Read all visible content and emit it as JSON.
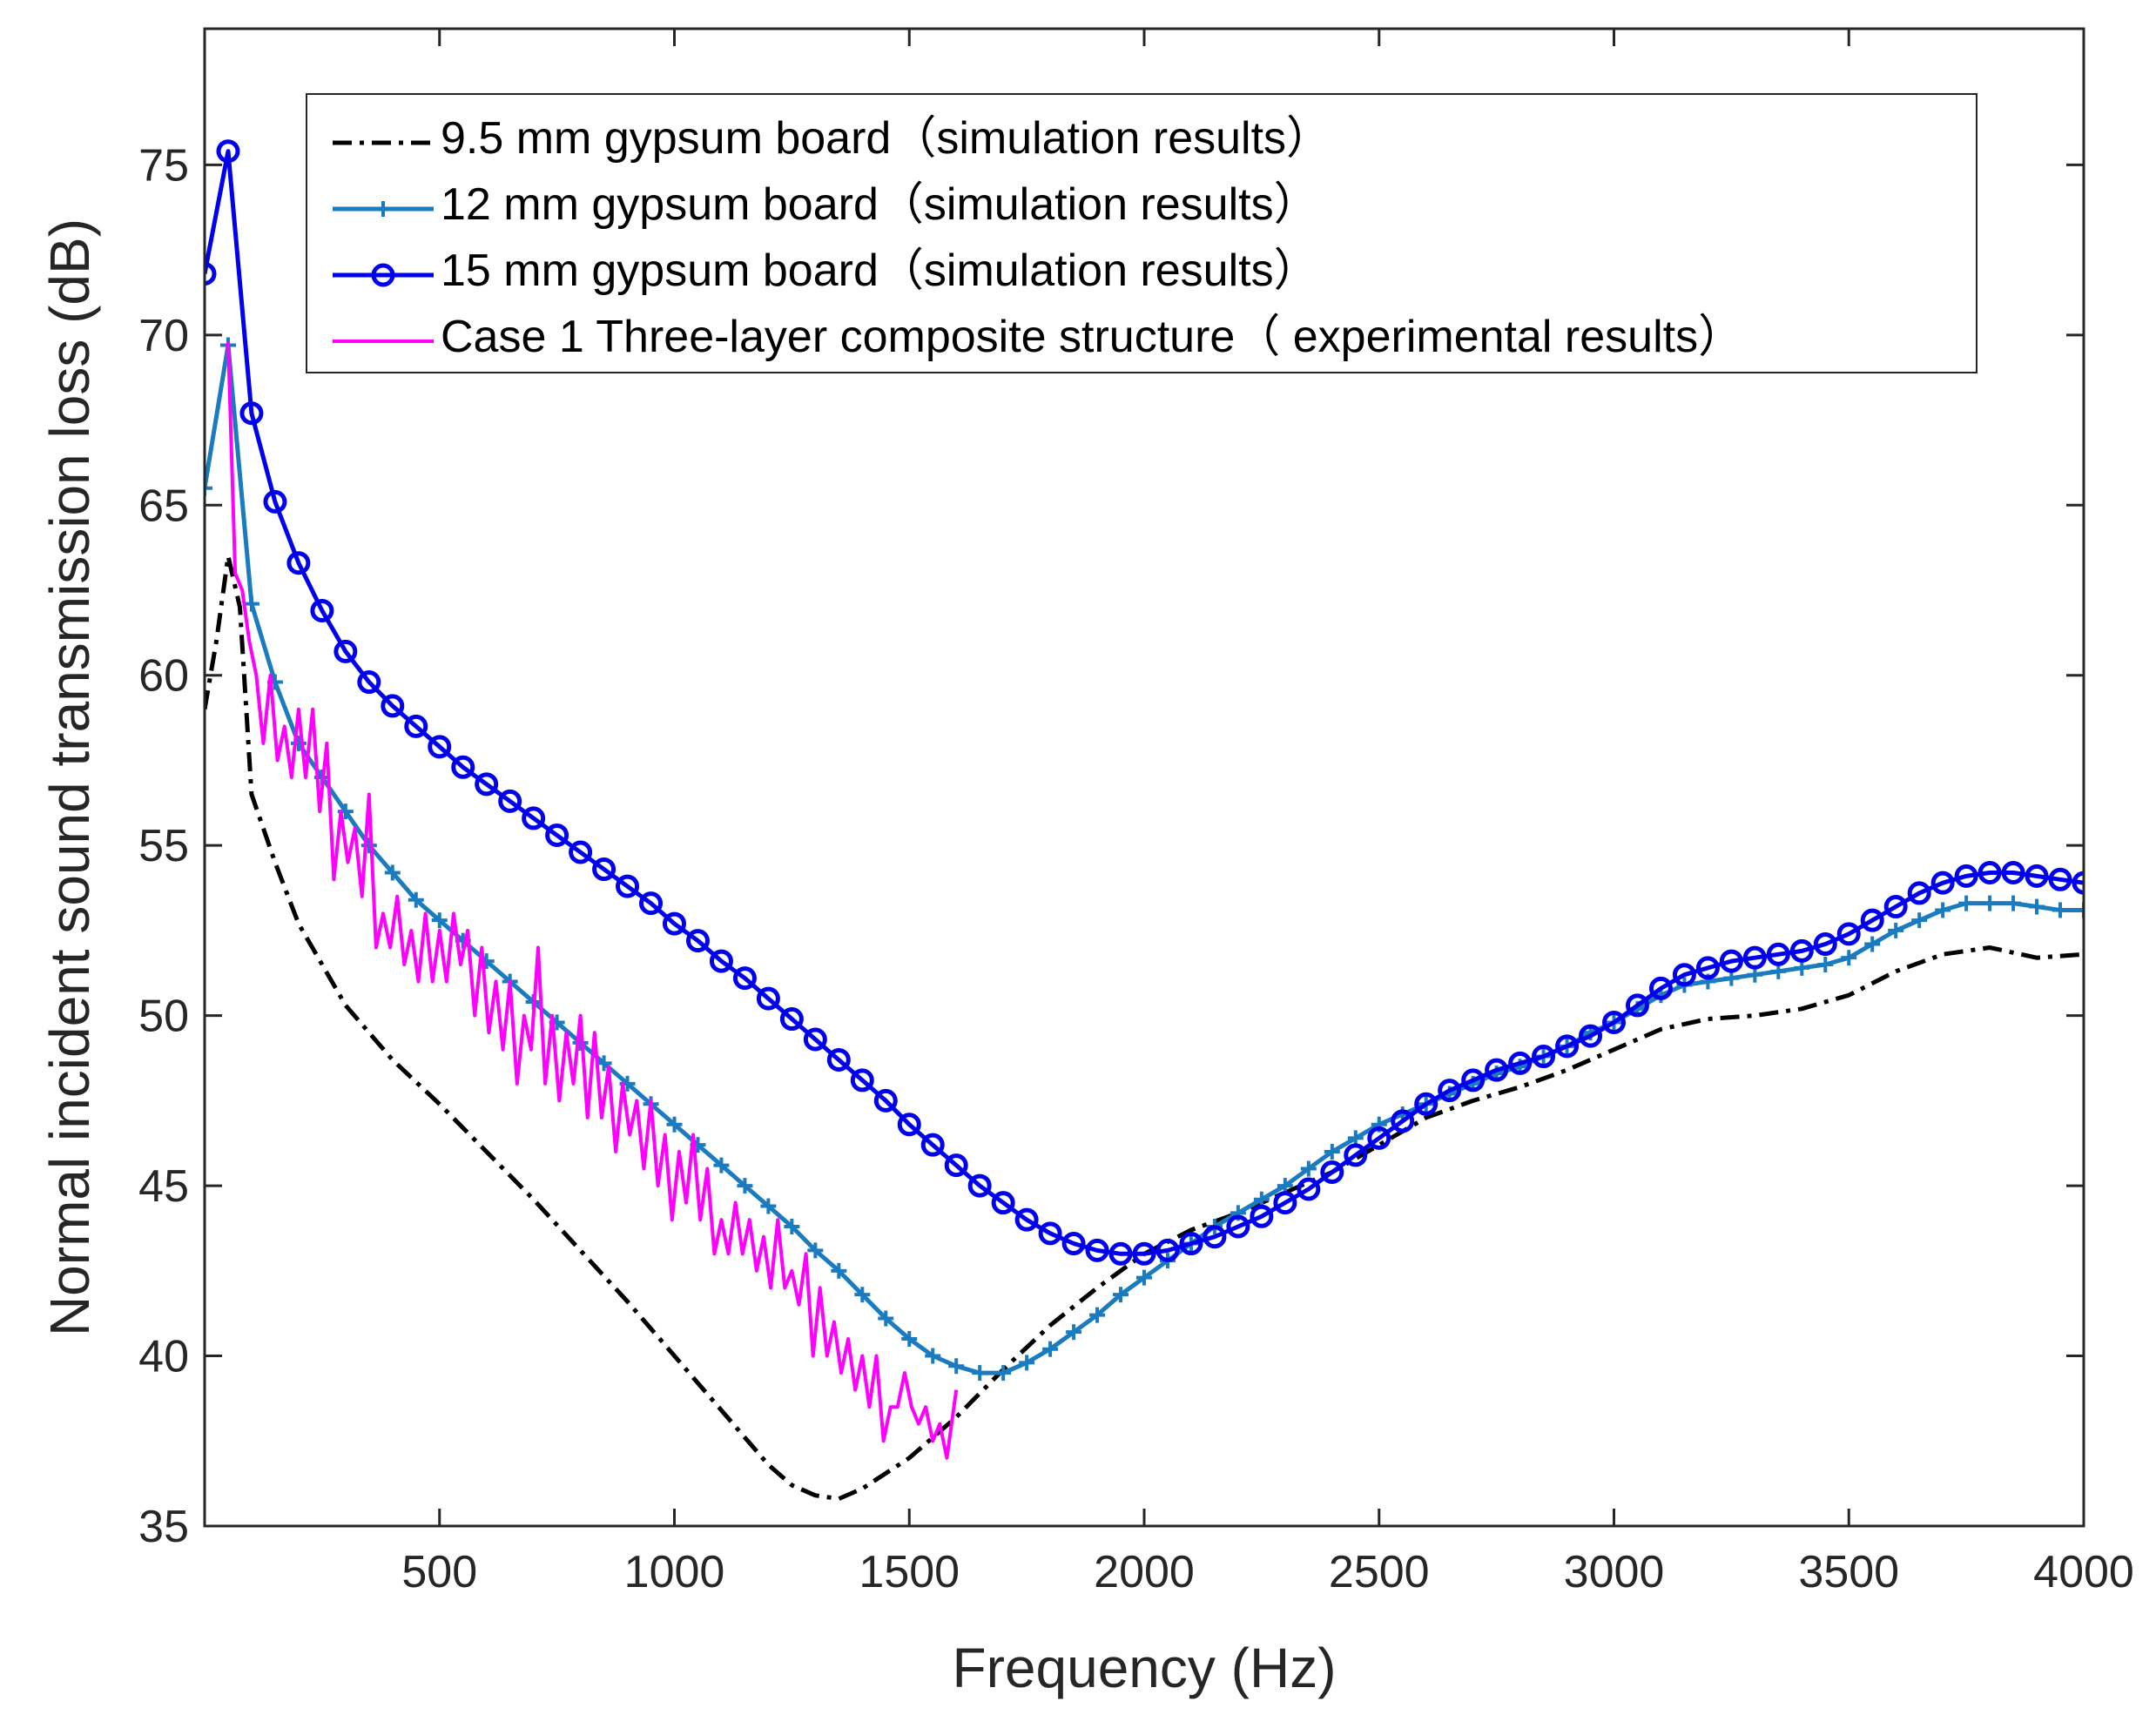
{
  "chart_data": {
    "type": "line",
    "title": "",
    "xlabel": "Frequency (Hz)",
    "ylabel": "Normal incident sound transmission loss (dB)",
    "xlim": [
      0,
      4000
    ],
    "ylim": [
      35,
      79
    ],
    "xticks": [
      500,
      1000,
      1500,
      2000,
      2500,
      3000,
      3500,
      4000
    ],
    "yticks": [
      35,
      40,
      45,
      50,
      55,
      60,
      65,
      70,
      75
    ],
    "legend_position": "top",
    "series": [
      {
        "name": "9.5 mm gypsum board（simulation results）",
        "color": "#000000",
        "style": "dashdot",
        "marker": "none",
        "x": [
          0,
          25,
          50,
          75,
          100,
          150,
          200,
          300,
          400,
          500,
          600,
          700,
          800,
          900,
          1000,
          1100,
          1200,
          1250,
          1300,
          1350,
          1400,
          1500,
          1600,
          1700,
          1800,
          1900,
          2000,
          2100,
          2200,
          2300,
          2400,
          2500,
          2600,
          2700,
          2800,
          2900,
          3000,
          3100,
          3200,
          3300,
          3400,
          3500,
          3600,
          3700,
          3800,
          3900,
          4000
        ],
        "y": [
          59,
          61,
          63.5,
          62,
          56.5,
          54.5,
          52.7,
          50.3,
          48.7,
          47.4,
          46,
          44.6,
          43.1,
          41.6,
          40,
          38.4,
          36.8,
          36.2,
          35.9,
          35.8,
          36.1,
          37,
          38.2,
          39.6,
          40.9,
          42,
          43,
          43.7,
          44.2,
          44.8,
          45.4,
          46.2,
          47,
          47.5,
          47.9,
          48.4,
          49,
          49.6,
          49.9,
          50,
          50.2,
          50.6,
          51.3,
          51.8,
          52,
          51.7,
          51.8
        ]
      },
      {
        "name": "12 mm gypsum board（simulation results）",
        "color": "#1a7bbf",
        "style": "solid",
        "marker": "plus",
        "x": [
          0,
          50,
          100,
          150,
          200,
          250,
          300,
          350,
          400,
          450,
          500,
          550,
          600,
          650,
          700,
          750,
          800,
          850,
          900,
          950,
          1000,
          1050,
          1100,
          1150,
          1200,
          1250,
          1300,
          1350,
          1400,
          1450,
          1500,
          1550,
          1600,
          1650,
          1700,
          1750,
          1800,
          1850,
          1900,
          1950,
          2000,
          2050,
          2100,
          2150,
          2200,
          2250,
          2300,
          2350,
          2400,
          2450,
          2500,
          2550,
          2600,
          2650,
          2700,
          2750,
          2800,
          2850,
          2900,
          2950,
          3000,
          3050,
          3100,
          3150,
          3200,
          3250,
          3300,
          3350,
          3400,
          3450,
          3500,
          3550,
          3600,
          3650,
          3700,
          3750,
          3800,
          3850,
          3900,
          3950,
          4000
        ],
        "y": [
          65.5,
          69.7,
          62.1,
          59.8,
          58,
          57,
          56,
          55,
          54.2,
          53.4,
          52.8,
          52.2,
          51.6,
          51,
          50.4,
          49.8,
          49.2,
          48.6,
          48,
          47.4,
          46.8,
          46.2,
          45.6,
          45,
          44.4,
          43.8,
          43.1,
          42.5,
          41.8,
          41.1,
          40.5,
          40,
          39.7,
          39.5,
          39.5,
          39.8,
          40.2,
          40.7,
          41.2,
          41.8,
          42.3,
          42.8,
          43.3,
          43.8,
          44.2,
          44.6,
          45,
          45.5,
          46,
          46.4,
          46.8,
          47.1,
          47.4,
          47.7,
          48,
          48.3,
          48.5,
          48.8,
          49.1,
          49.5,
          49.8,
          50.2,
          50.6,
          50.9,
          51,
          51.1,
          51.2,
          51.3,
          51.4,
          51.5,
          51.7,
          52.1,
          52.5,
          52.8,
          53.1,
          53.3,
          53.3,
          53.3,
          53.2,
          53.1,
          53.1
        ]
      },
      {
        "name": "15 mm gypsum board（simulation results）",
        "color": "#0000ee",
        "style": "solid",
        "marker": "circle",
        "x": [
          0,
          50,
          100,
          150,
          200,
          250,
          300,
          350,
          400,
          450,
          500,
          550,
          600,
          650,
          700,
          750,
          800,
          850,
          900,
          950,
          1000,
          1050,
          1100,
          1150,
          1200,
          1250,
          1300,
          1350,
          1400,
          1450,
          1500,
          1550,
          1600,
          1650,
          1700,
          1750,
          1800,
          1850,
          1900,
          1950,
          2000,
          2050,
          2100,
          2150,
          2200,
          2250,
          2300,
          2350,
          2400,
          2450,
          2500,
          2550,
          2600,
          2650,
          2700,
          2750,
          2800,
          2850,
          2900,
          2950,
          3000,
          3050,
          3100,
          3150,
          3200,
          3250,
          3300,
          3350,
          3400,
          3450,
          3500,
          3550,
          3600,
          3650,
          3700,
          3750,
          3800,
          3850,
          3900,
          3950,
          4000
        ],
        "y": [
          71.8,
          75.4,
          67.7,
          65.1,
          63.3,
          61.9,
          60.7,
          59.8,
          59.1,
          58.5,
          57.9,
          57.3,
          56.8,
          56.3,
          55.8,
          55.3,
          54.8,
          54.3,
          53.8,
          53.3,
          52.7,
          52.2,
          51.6,
          51.1,
          50.5,
          49.9,
          49.3,
          48.7,
          48.1,
          47.5,
          46.8,
          46.2,
          45.6,
          45,
          44.5,
          44,
          43.6,
          43.3,
          43.1,
          43,
          43,
          43.1,
          43.3,
          43.5,
          43.8,
          44.1,
          44.5,
          44.9,
          45.4,
          45.9,
          46.4,
          46.9,
          47.4,
          47.8,
          48.1,
          48.4,
          48.6,
          48.8,
          49.1,
          49.4,
          49.8,
          50.3,
          50.8,
          51.2,
          51.4,
          51.6,
          51.7,
          51.8,
          51.9,
          52.1,
          52.4,
          52.8,
          53.2,
          53.6,
          53.9,
          54.1,
          54.2,
          54.2,
          54.1,
          54.0,
          53.9
        ]
      },
      {
        "name": "Case 1 Three-layer composite structure（ experimental results）",
        "color": "#ff00ff",
        "style": "solid",
        "marker": "none",
        "x": [
          50,
          65,
          80,
          95,
          110,
          125,
          140,
          155,
          170,
          185,
          200,
          215,
          230,
          245,
          260,
          275,
          290,
          305,
          320,
          335,
          350,
          365,
          380,
          395,
          410,
          425,
          440,
          455,
          470,
          485,
          500,
          515,
          530,
          545,
          560,
          575,
          590,
          605,
          620,
          635,
          650,
          665,
          680,
          695,
          710,
          725,
          740,
          755,
          770,
          785,
          800,
          815,
          830,
          845,
          860,
          875,
          890,
          905,
          920,
          935,
          950,
          965,
          980,
          995,
          1010,
          1025,
          1040,
          1055,
          1070,
          1085,
          1100,
          1115,
          1130,
          1145,
          1160,
          1175,
          1190,
          1205,
          1220,
          1235,
          1250,
          1265,
          1280,
          1295,
          1310,
          1325,
          1340,
          1355,
          1370,
          1385,
          1400,
          1415,
          1430,
          1445,
          1460,
          1475,
          1490,
          1505,
          1520,
          1535,
          1550,
          1565,
          1580,
          1600
        ],
        "y": [
          69.8,
          63,
          62.5,
          61,
          60,
          58,
          60,
          57.5,
          58.5,
          57,
          59,
          57,
          59,
          56,
          58,
          54,
          56,
          54.5,
          55.5,
          53.5,
          56.5,
          52,
          53,
          52,
          53.5,
          51.5,
          52.5,
          51,
          53,
          51,
          52.5,
          51,
          53,
          51.5,
          52.5,
          50,
          52,
          49.5,
          51,
          49,
          51,
          48,
          50,
          49,
          52,
          48,
          50,
          47.5,
          49.5,
          48,
          50,
          47,
          49.5,
          47,
          48.5,
          46,
          48,
          46.5,
          47.5,
          45.5,
          47.5,
          45,
          46.5,
          44,
          46,
          44.5,
          46.5,
          44,
          45.5,
          43,
          44,
          43,
          44.5,
          43,
          44,
          42.5,
          43.5,
          42,
          44,
          42,
          42.5,
          41.5,
          43,
          40,
          42,
          40,
          41,
          39.5,
          40.5,
          39,
          40,
          38.5,
          40,
          37.5,
          38.5,
          38.5,
          39.5,
          38.5,
          38,
          38.5,
          37.5,
          38,
          37,
          39
        ]
      }
    ]
  }
}
